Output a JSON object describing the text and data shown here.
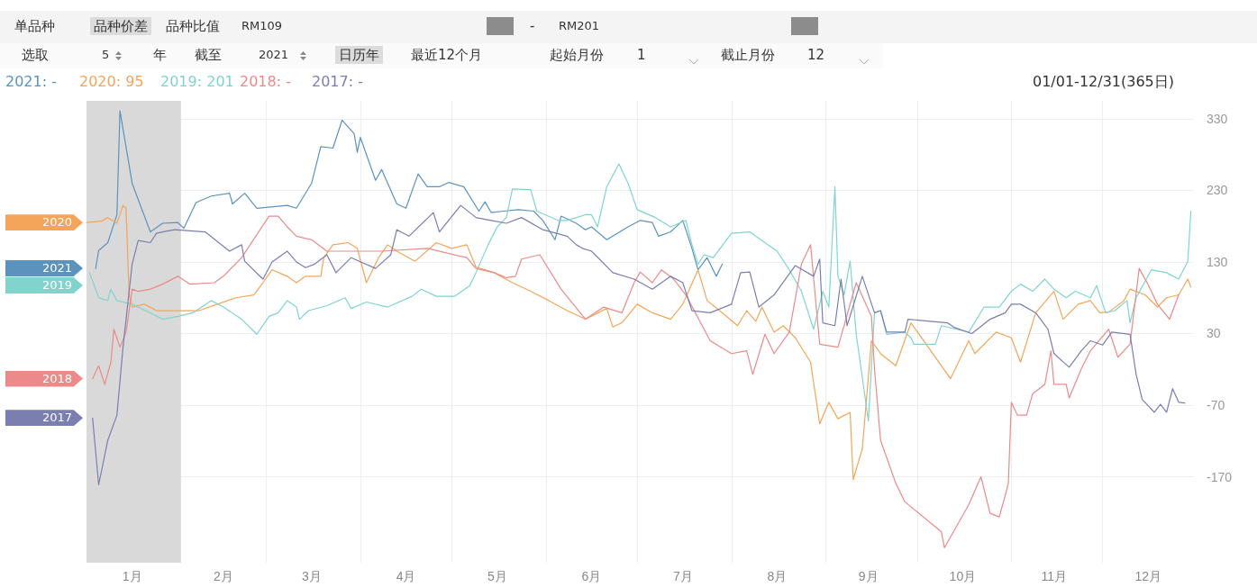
{
  "chart_data": {
    "type": "line",
    "marker": "none",
    "line_style": "solid",
    "grid": true,
    "legend": false,
    "xlim": [
      "--01-01",
      "--12-31"
    ],
    "xticks": [
      {
        "value": "--01-16",
        "label": "1月"
      },
      {
        "value": "--02-01",
        "label": null
      },
      {
        "value": "--02-15",
        "label": "2月"
      },
      {
        "value": "--03-01",
        "label": null
      },
      {
        "value": "--03-16",
        "label": "3月"
      },
      {
        "value": "--04-01",
        "label": null
      },
      {
        "value": "--04-16",
        "label": "4月"
      },
      {
        "value": "--05-01",
        "label": null
      },
      {
        "value": "--05-16",
        "label": "5月"
      },
      {
        "value": "--06-01",
        "label": null
      },
      {
        "value": "--06-16",
        "label": "6月"
      },
      {
        "value": "--07-01",
        "label": null
      },
      {
        "value": "--07-16",
        "label": "7月"
      },
      {
        "value": "--08-01",
        "label": null
      },
      {
        "value": "--08-16",
        "label": "8月"
      },
      {
        "value": "--09-01",
        "label": null
      },
      {
        "value": "--09-15",
        "label": "9月"
      },
      {
        "value": "--10-01",
        "label": null
      },
      {
        "value": "--10-16",
        "label": "10月"
      },
      {
        "value": "--11-01",
        "label": null
      },
      {
        "value": "--11-15",
        "label": "11月"
      },
      {
        "value": "--12-01",
        "label": null
      },
      {
        "value": "--12-16",
        "label": "12月"
      }
    ],
    "ylim": [
      -290,
      355
    ],
    "yticks": [
      -170,
      -70,
      30,
      130,
      230,
      330
    ],
    "bands": [
      {
        "axis": "x",
        "from": "--01-01",
        "to": "--02-01",
        "color": "#d9d9d9"
      }
    ],
    "annotations": [
      "2021: -",
      "2020: 95",
      "2019: 201",
      "2018: -",
      "2017: -",
      "01/01-12/31(365日)",
      "单品种",
      "品种价差",
      "品种比值",
      "RM109",
      "-",
      "RM201",
      "选取",
      "5",
      "年",
      "截至",
      "2021",
      "日历年",
      "最近12个月",
      "起始月份",
      "1",
      "截止月份",
      "12"
    ],
    "series": [
      {
        "name": "2021",
        "color": "#5b93bd",
        "x": [
          "--01-04",
          "--01-05",
          "--01-08",
          "--01-11",
          "--01-12",
          "--01-16",
          "--01-18",
          "--01-22",
          "--01-26",
          "--01-31",
          "--02-02",
          "--02-06",
          "--02-11",
          "--02-17",
          "--02-18",
          "--02-22",
          "--02-26",
          "--03-08",
          "--03-11",
          "--03-16",
          "--03-19",
          "--03-23",
          "--03-26",
          "--03-30",
          "--03-31",
          "--04-01",
          "--04-06",
          "--04-08",
          "--04-13",
          "--04-16",
          "--04-20",
          "--04-23",
          "--04-27",
          "--04-30",
          "--05-05",
          "--05-10",
          "--05-12",
          "--05-14",
          "--05-18",
          "--05-23",
          "--05-28",
          "--05-31",
          "--06-04",
          "--06-06",
          "--06-11",
          "--06-14",
          "--06-16",
          "--06-21",
          "--06-28",
          "--07-02",
          "--07-06",
          "--07-08",
          "--07-12",
          "--07-16",
          "--07-19",
          "--07-21",
          "--07-24",
          "--07-27",
          "--07-29"
        ],
        "values": [
          121,
          146,
          157,
          196,
          341,
          240,
          217,
          172,
          184,
          185,
          177,
          213,
          222,
          226,
          211,
          226,
          205,
          209,
          205,
          240,
          291,
          289,
          328,
          309,
          283,
          304,
          244,
          259,
          211,
          205,
          253,
          235,
          235,
          241,
          235,
          201,
          214,
          199,
          201,
          203,
          201,
          188,
          161,
          194,
          184,
          175,
          179,
          161,
          179,
          188,
          185,
          166,
          172,
          188,
          149,
          119,
          136,
          110,
          127
        ]
      },
      {
        "name": "2020",
        "color": "#f5a55a",
        "x": [
          "--01-01",
          "--01-06",
          "--01-08",
          "--01-11",
          "--01-13",
          "--01-14",
          "--01-15",
          "--01-16",
          "--01-20",
          "--01-24",
          "--01-31",
          "--02-07",
          "--02-13",
          "--02-19",
          "--02-25",
          "--02-28",
          "--03-03",
          "--03-08",
          "--03-11",
          "--03-14",
          "--03-19",
          "--03-20",
          "--03-23",
          "--03-28",
          "--03-31",
          "--04-03",
          "--04-07",
          "--04-10",
          "--04-13",
          "--04-19",
          "--04-26",
          "--05-01",
          "--05-06",
          "--05-09",
          "--05-15",
          "--05-21",
          "--05-27",
          "--06-02",
          "--06-08",
          "--06-14",
          "--06-21",
          "--06-23",
          "--06-26",
          "--07-01",
          "--07-06",
          "--07-12",
          "--07-16",
          "--07-21",
          "--07-24",
          "--07-29",
          "--08-03",
          "--08-06",
          "--08-09",
          "--08-11",
          "--08-15",
          "--08-18",
          "--08-22",
          "--08-27",
          "--08-30",
          "--09-02",
          "--09-05",
          "--09-09",
          "--09-10",
          "--09-13",
          "--09-16",
          "--09-19",
          "--09-24",
          "--09-29",
          "--10-12",
          "--10-18",
          "--10-20",
          "--10-27",
          "--11-01",
          "--11-04",
          "--11-09",
          "--11-15",
          "--11-18",
          "--11-23",
          "--11-27",
          "--11-30",
          "--12-03",
          "--12-08",
          "--12-10",
          "--12-15",
          "--12-19",
          "--12-22",
          "--12-26",
          "--12-29",
          "--12-30"
        ],
        "values": [
          185,
          187,
          192,
          184,
          209,
          205,
          84,
          67,
          71,
          62,
          62,
          62,
          71,
          80,
          84,
          101,
          119,
          110,
          101,
          110,
          110,
          136,
          154,
          157,
          149,
          101,
          136,
          154,
          145,
          131,
          157,
          149,
          154,
          123,
          115,
          101,
          89,
          76,
          62,
          50,
          65,
          39,
          45,
          71,
          59,
          50,
          71,
          119,
          76,
          59,
          41,
          62,
          47,
          67,
          32,
          41,
          24,
          -10,
          -96,
          -66,
          -89,
          -80,
          -174,
          -131,
          20,
          2,
          -15,
          45,
          -33,
          20,
          2,
          32,
          24,
          -10,
          59,
          89,
          50,
          71,
          76,
          59,
          60,
          76,
          92,
          84,
          67,
          80,
          84,
          106,
          95
        ]
      },
      {
        "name": "2019",
        "color": "#80d4cc",
        "x": [
          "--01-02",
          "--01-05",
          "--01-08",
          "--01-09",
          "--01-11",
          "--01-16",
          "--01-22",
          "--01-26",
          "--01-31",
          "--02-05",
          "--02-11",
          "--02-15",
          "--02-21",
          "--02-26",
          "--03-02",
          "--03-05",
          "--03-08",
          "--03-11",
          "--03-12",
          "--03-15",
          "--03-21",
          "--03-27",
          "--03-29",
          "--04-03",
          "--04-10",
          "--04-18",
          "--04-21",
          "--04-26",
          "--05-02",
          "--05-07",
          "--05-09",
          "--05-13",
          "--05-16",
          "--05-19",
          "--05-21",
          "--05-27",
          "--05-29",
          "--06-05",
          "--06-08",
          "--06-14",
          "--06-16",
          "--06-18",
          "--06-21",
          "--06-25",
          "--06-28",
          "--07-01",
          "--07-07",
          "--07-12",
          "--07-17",
          "--07-19",
          "--07-21",
          "--07-23",
          "--07-26",
          "--08-01",
          "--08-07",
          "--08-12",
          "--08-16",
          "--08-20",
          "--08-24",
          "--08-28",
          "--08-31",
          "--09-02",
          "--09-04",
          "--09-05",
          "--09-07",
          "--09-09",
          "--09-11",
          "--09-15",
          "--09-17",
          "--09-19",
          "--09-21",
          "--09-27",
          "--09-29",
          "--09-30",
          "--10-07",
          "--10-09",
          "--10-18",
          "--10-23",
          "--10-28",
          "--11-01",
          "--11-04",
          "--11-08",
          "--11-12",
          "--11-15",
          "--11-19",
          "--11-22",
          "--11-27",
          "--11-29",
          "--12-02",
          "--12-05",
          "--12-09",
          "--12-10",
          "--12-12",
          "--12-17",
          "--12-22",
          "--12-26",
          "--12-29",
          "--12-30"
        ],
        "values": [
          115,
          80,
          76,
          92,
          76,
          71,
          59,
          50,
          54,
          59,
          76,
          67,
          50,
          29,
          54,
          59,
          76,
          67,
          50,
          62,
          69,
          80,
          65,
          74,
          67,
          82,
          92,
          82,
          82,
          97,
          115,
          154,
          179,
          192,
          232,
          231,
          201,
          188,
          188,
          196,
          196,
          179,
          235,
          267,
          240,
          203,
          192,
          179,
          188,
          154,
          127,
          140,
          136,
          170,
          172,
          157,
          145,
          119,
          89,
          36,
          89,
          67,
          235,
          110,
          84,
          131,
          29,
          -92,
          59,
          62,
          29,
          32,
          24,
          15,
          15,
          41,
          32,
          67,
          67,
          89,
          99,
          89,
          106,
          92,
          80,
          89,
          80,
          97,
          59,
          62,
          76,
          45,
          80,
          119,
          115,
          106,
          131,
          201
        ]
      },
      {
        "name": "2018",
        "color": "#ec8a8a",
        "x": [
          "--01-03",
          "--01-05",
          "--01-07",
          "--01-09",
          "--01-10",
          "--01-12",
          "--01-14",
          "--01-16",
          "--01-18",
          "--01-22",
          "--01-26",
          "--01-31",
          "--02-04",
          "--02-12",
          "--02-15",
          "--02-21",
          "--03-02",
          "--03-05",
          "--03-08",
          "--03-11",
          "--03-16",
          "--03-21",
          "--04-08",
          "--04-23",
          "--05-06",
          "--05-09",
          "--05-15",
          "--05-19",
          "--05-22",
          "--05-24",
          "--05-30",
          "--06-06",
          "--06-14",
          "--06-20",
          "--06-26",
          "--06-30",
          "--07-02",
          "--07-06",
          "--07-09",
          "--07-13",
          "--07-17",
          "--07-25",
          "--08-01",
          "--08-06",
          "--08-08",
          "--08-12",
          "--08-15",
          "--08-20",
          "--08-24",
          "--08-27",
          "--08-30",
          "--09-05",
          "--09-11",
          "--09-16",
          "--09-17",
          "--09-19",
          "--09-24",
          "--09-27",
          "--10-09",
          "--10-10",
          "--10-14",
          "--10-18",
          "--10-22",
          "--10-25",
          "--10-28",
          "--10-30",
          "--10-31",
          "--11-01",
          "--11-03",
          "--11-06",
          "--11-08",
          "--11-12",
          "--11-14",
          "--11-15",
          "--11-19",
          "--11-20",
          "--11-24",
          "--11-27",
          "--12-03",
          "--12-06",
          "--12-10",
          "--12-13",
          "--12-16",
          "--12-19",
          "--12-23",
          "--12-26"
        ],
        "values": [
          -33,
          -15,
          -41,
          -10,
          36,
          11,
          32,
          92,
          89,
          92,
          99,
          110,
          99,
          101,
          110,
          136,
          194,
          194,
          179,
          166,
          161,
          145,
          145,
          149,
          136,
          121,
          115,
          108,
          110,
          134,
          140,
          92,
          50,
          67,
          59,
          101,
          116,
          101,
          119,
          106,
          84,
          20,
          2,
          6,
          -27,
          29,
          2,
          32,
          127,
          154,
          15,
          11,
          101,
          54,
          -19,
          -119,
          -179,
          -205,
          -247,
          -269,
          -239,
          -209,
          -170,
          -221,
          -226,
          -196,
          -179,
          -66,
          -84,
          -84,
          -54,
          -41,
          6,
          -41,
          -41,
          -60,
          -19,
          6,
          36,
          -3,
          15,
          121,
          98,
          71,
          50,
          84
        ]
      },
      {
        "name": "2017",
        "color": "#7a7fb0",
        "x": [
          "--01-03",
          "--01-05",
          "--01-08",
          "--01-11",
          "--01-13",
          "--01-16",
          "--01-18",
          "--01-22",
          "--01-24",
          "--01-26",
          "--01-30",
          "--02-09",
          "--02-17",
          "--02-21",
          "--02-22",
          "--02-28",
          "--03-03",
          "--03-08",
          "--03-11",
          "--03-14",
          "--03-17",
          "--03-21",
          "--03-24",
          "--03-29",
          "--04-06",
          "--04-11",
          "--04-13",
          "--04-17",
          "--04-25",
          "--04-27",
          "--05-04",
          "--05-09",
          "--05-14",
          "--05-19",
          "--05-24",
          "--05-31",
          "--06-08",
          "--06-11",
          "--06-13",
          "--06-16",
          "--06-23",
          "--06-30",
          "--07-06",
          "--07-12",
          "--07-16",
          "--07-19",
          "--07-25",
          "--08-01",
          "--08-04",
          "--08-07",
          "--08-10",
          "--08-15",
          "--08-22",
          "--08-28",
          "--08-30",
          "--08-31",
          "--09-04",
          "--09-06",
          "--09-08",
          "--09-13",
          "--09-17",
          "--09-19",
          "--09-21",
          "--09-27",
          "--09-28",
          "--10-11",
          "--10-13",
          "--10-19",
          "--10-25",
          "--10-30",
          "--11-01",
          "--11-04",
          "--11-09",
          "--11-13",
          "--11-15",
          "--11-20",
          "--11-24",
          "--11-27",
          "--12-01",
          "--12-04",
          "--12-10",
          "--12-12",
          "--12-14",
          "--12-18",
          "--12-20",
          "--12-22",
          "--12-24",
          "--12-26",
          "--12-28"
        ],
        "values": [
          -88,
          -181,
          -119,
          -84,
          11,
          127,
          160,
          157,
          170,
          172,
          175,
          172,
          145,
          154,
          131,
          106,
          130,
          145,
          130,
          122,
          127,
          140,
          115,
          136,
          121,
          140,
          175,
          166,
          199,
          172,
          209,
          192,
          188,
          184,
          192,
          175,
          166,
          154,
          149,
          145,
          115,
          106,
          92,
          110,
          101,
          62,
          59,
          71,
          115,
          116,
          67,
          84,
          125,
          110,
          134,
          45,
          41,
          106,
          41,
          110,
          59,
          62,
          32,
          32,
          50,
          45,
          39,
          30,
          50,
          59,
          71,
          71,
          59,
          36,
          2,
          -17,
          6,
          20,
          14,
          32,
          29,
          -27,
          -62,
          -80,
          -69,
          -80,
          -47,
          -66,
          -67
        ]
      }
    ]
  }
}
